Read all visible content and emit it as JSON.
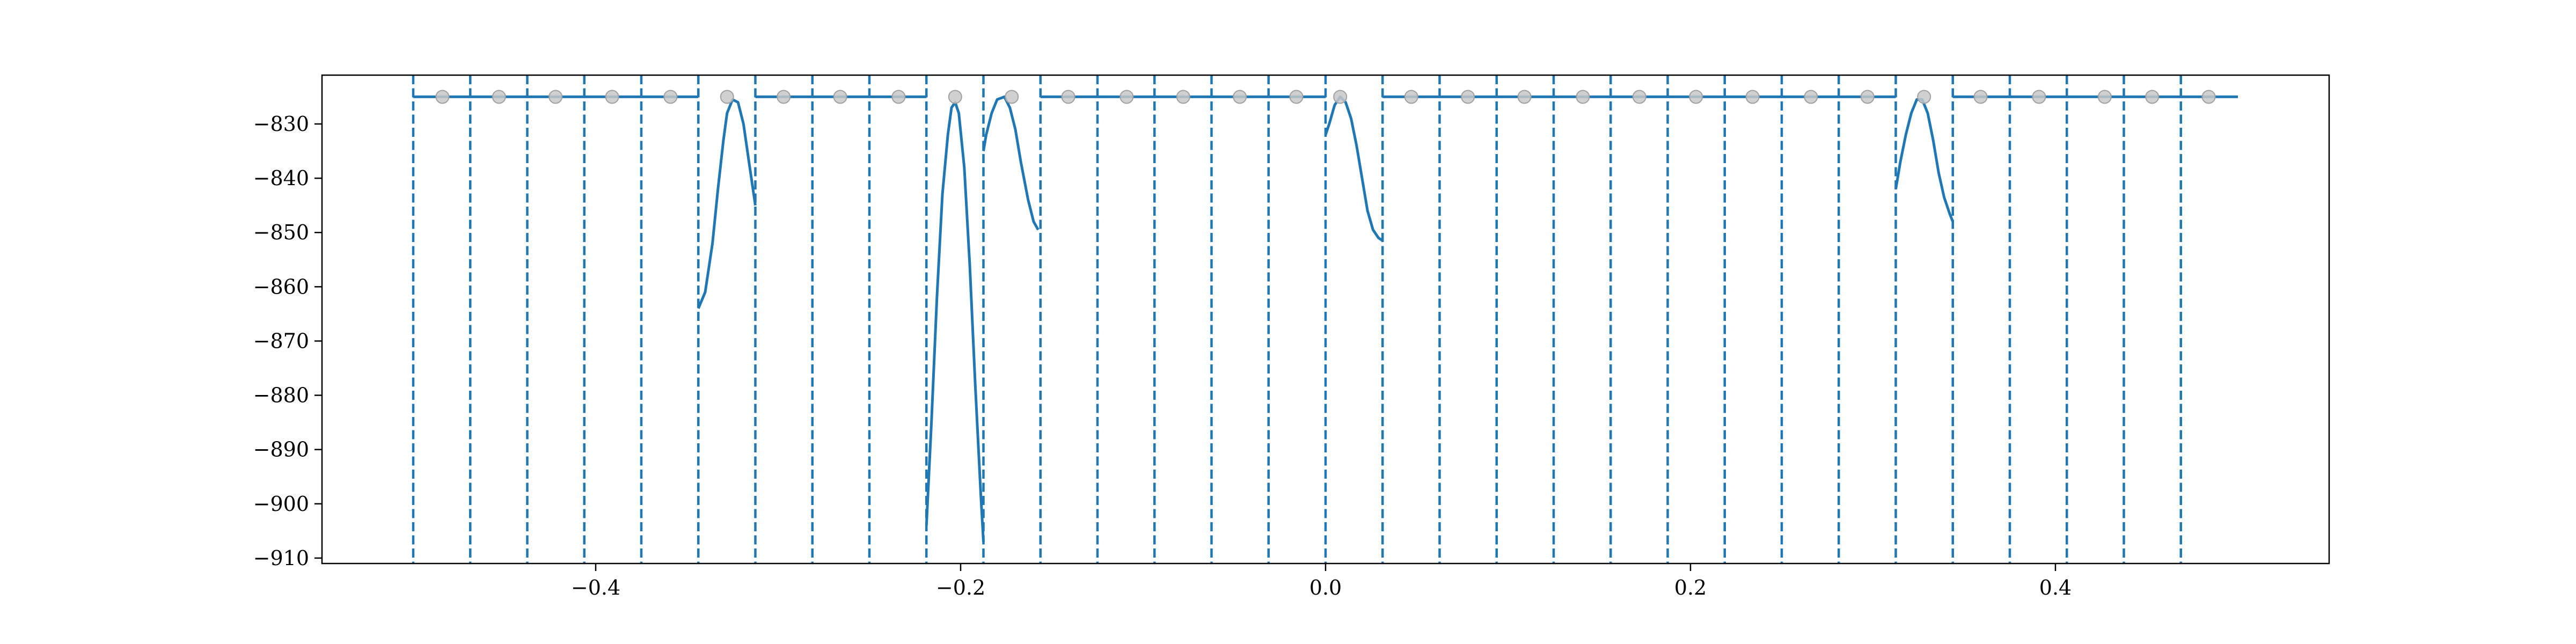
{
  "chart_data": {
    "type": "line",
    "title": "",
    "xlabel": "",
    "ylabel": "",
    "xlim": [
      -0.55,
      0.55
    ],
    "ylim": [
      -911,
      -821
    ],
    "grid": false,
    "x_ticks": [
      -0.4,
      -0.2,
      0.0,
      0.2,
      0.4
    ],
    "x_tick_labels": [
      "−0.4",
      "−0.2",
      "0.0",
      "0.2",
      "0.4"
    ],
    "y_ticks": [
      -830,
      -840,
      -850,
      -860,
      -870,
      -880,
      -890,
      -900,
      -910
    ],
    "y_tick_labels": [
      "−830",
      "−840",
      "−850",
      "−860",
      "−870",
      "−880",
      "−890",
      "−900",
      "−910"
    ],
    "boundaries": [
      -0.5,
      -0.46875,
      -0.4375,
      -0.40625,
      -0.375,
      -0.34375,
      -0.3125,
      -0.28125,
      -0.25,
      -0.21875,
      -0.1875,
      -0.15625,
      -0.125,
      -0.09375,
      -0.0625,
      -0.03125,
      0.0,
      0.03125,
      0.0625,
      0.09375,
      0.125,
      0.15625,
      0.1875,
      0.21875,
      0.25,
      0.28125,
      0.3125,
      0.34375,
      0.375,
      0.40625,
      0.4375,
      0.46875
    ],
    "baseline": -825,
    "line_color": "#1f77b4",
    "marker_color": "#c8c8c8",
    "markers": {
      "x": [
        -0.484,
        -0.453,
        -0.422,
        -0.391,
        -0.359,
        -0.328,
        -0.297,
        -0.266,
        -0.234,
        -0.203,
        -0.172,
        -0.141,
        -0.109,
        -0.078,
        -0.047,
        -0.016,
        0.008,
        0.047,
        0.078,
        0.109,
        0.141,
        0.172,
        0.203,
        0.234,
        0.266,
        0.297,
        0.328,
        0.359,
        0.391,
        0.427,
        0.453,
        0.484
      ],
      "y": [
        -825,
        -825,
        -825,
        -825,
        -825,
        -825,
        -825,
        -825,
        -825,
        -825,
        -825,
        -825,
        -825,
        -825,
        -825,
        -825,
        -825,
        -825,
        -825,
        -825,
        -825,
        -825,
        -825,
        -825,
        -825,
        -825,
        -825,
        -825,
        -825,
        -825,
        -825,
        -825
      ]
    },
    "series": [
      {
        "segments": [
          {
            "x": [
              -0.5,
              -0.34375
            ],
            "y": [
              -825,
              -825
            ]
          },
          {
            "x": [
              -0.34375,
              -0.34,
              -0.336,
              -0.333,
              -0.33,
              -0.328,
              -0.325,
              -0.322,
              -0.319,
              -0.316,
              -0.3125
            ],
            "y": [
              -864,
              -861,
              -852,
              -842,
              -833,
              -828,
              -825.5,
              -826,
              -830,
              -837,
              -845
            ]
          },
          {
            "x": [
              -0.3125,
              -0.21875
            ],
            "y": [
              -825,
              -825
            ]
          },
          {
            "x": [
              -0.21875,
              -0.216,
              -0.213,
              -0.21,
              -0.207,
              -0.205,
              -0.203,
              -0.201,
              -0.198,
              -0.195,
              -0.192,
              -0.189,
              -0.1875
            ],
            "y": [
              -904,
              -885,
              -862,
              -843,
              -832,
              -827,
              -826,
              -828,
              -838,
              -856,
              -878,
              -898,
              -907
            ]
          },
          {
            "x": [
              -0.1875,
              -0.186,
              -0.183,
              -0.18,
              -0.176,
              -0.173,
              -0.17,
              -0.167,
              -0.163,
              -0.16,
              -0.1575
            ],
            "y": [
              -835,
              -832,
              -828,
              -825.5,
              -825,
              -827,
              -831,
              -837,
              -844,
              -848,
              -849.5
            ]
          },
          {
            "x": [
              -0.15625,
              0.0
            ],
            "y": [
              -825,
              -825
            ]
          },
          {
            "x": [
              0.0,
              0.002,
              0.005,
              0.008,
              0.011,
              0.014,
              0.017,
              0.02,
              0.023,
              0.026,
              0.029,
              0.03125
            ],
            "y": [
              -832,
              -830,
              -826.5,
              -825,
              -826,
              -829,
              -834,
              -840,
              -846,
              -849.5,
              -851,
              -851.5
            ]
          },
          {
            "x": [
              0.03125,
              0.3125
            ],
            "y": [
              -825,
              -825
            ]
          },
          {
            "x": [
              0.3125,
              0.315,
              0.318,
              0.321,
              0.324,
              0.327,
              0.33,
              0.333,
              0.336,
              0.339,
              0.342,
              0.34375
            ],
            "y": [
              -842,
              -837,
              -832,
              -828,
              -825.5,
              -825.5,
              -828,
              -833,
              -839,
              -843.5,
              -846.5,
              -848
            ]
          },
          {
            "x": [
              0.34375,
              0.5
            ],
            "y": [
              -825,
              -825
            ]
          }
        ]
      }
    ]
  }
}
